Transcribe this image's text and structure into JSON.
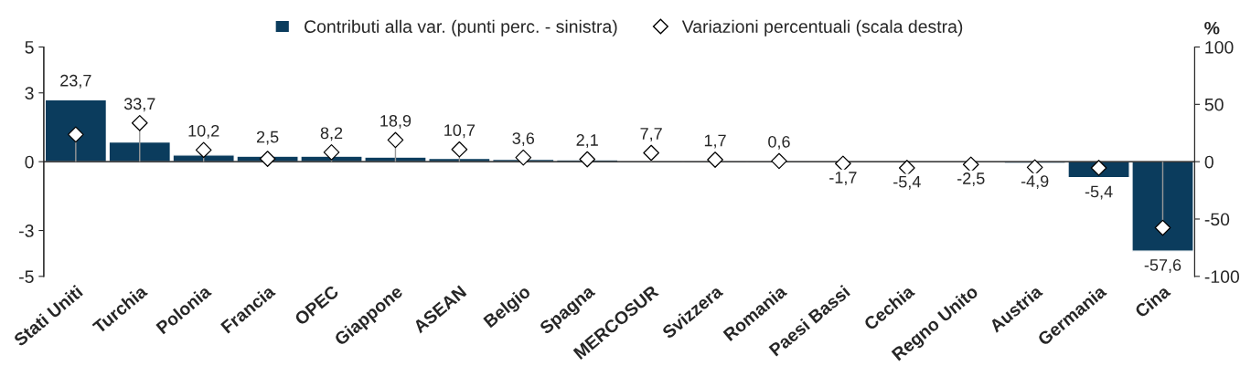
{
  "chart_data": {
    "type": "bar",
    "categories": [
      "Stati Uniti",
      "Turchia",
      "Polonia",
      "Francia",
      "OPEC",
      "Giappone",
      "ASEAN",
      "Belgio",
      "Spagna",
      "MERCOSUR",
      "Svizzera",
      "Romania",
      "Paesi Bassi",
      "Cechia",
      "Regno Unito",
      "Austria",
      "Germania",
      "Cina"
    ],
    "series": [
      {
        "name": "Contributi alla var. (punti perc. - sinistra)",
        "color": "#0b3c5d",
        "values": [
          2.7,
          0.86,
          0.29,
          0.24,
          0.24,
          0.2,
          0.14,
          0.1,
          0.08,
          0.05,
          0.02,
          0.01,
          -0.01,
          -0.03,
          -0.05,
          -0.07,
          -0.7,
          -3.9
        ]
      },
      {
        "name": "Variazioni percentuali (scala destra)",
        "type": "lollipop",
        "axis": "y2",
        "marker": "diamond",
        "color": "#ffffff",
        "values": [
          23.7,
          33.7,
          10.2,
          2.5,
          8.2,
          18.9,
          10.7,
          3.6,
          2.1,
          7.7,
          1.7,
          0.6,
          -1.7,
          -5.4,
          -2.5,
          -4.9,
          -5.4,
          -57.6
        ],
        "value_labels": [
          "23,7",
          "33,7",
          "10,2",
          "2,5",
          "8,2",
          "18,9",
          "10,7",
          "3,6",
          "2,1",
          "7,7",
          "1,7",
          "0,6",
          "-1,7",
          "-5,4",
          "-2,5",
          "-4,9",
          "-5,4",
          "-57,6"
        ]
      }
    ],
    "ylim": [
      -5,
      5
    ],
    "yticks": [
      -5,
      -3,
      0,
      3,
      5
    ],
    "y2lim": [
      -100,
      100
    ],
    "y2ticks": [
      -100,
      -50,
      0,
      50,
      100
    ],
    "y2label": "%",
    "ref_lines": [
      {
        "axis": "y",
        "value": 0
      }
    ],
    "legend": "top",
    "grid": false
  }
}
